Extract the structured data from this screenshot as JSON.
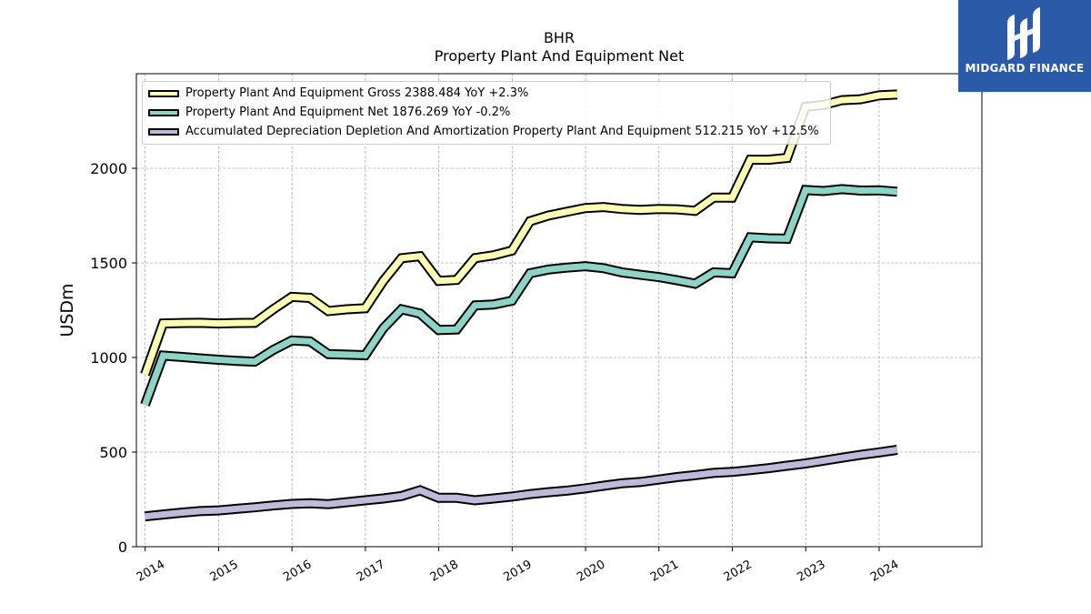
{
  "header": {
    "title_line1": "BHR",
    "title_line2": "Property Plant And Equipment Net"
  },
  "logo": {
    "text": "MIDGARD FINANCE",
    "icon": "midgard-logo-icon",
    "color": "#2a5aa8"
  },
  "chart_data": {
    "type": "line",
    "title": "BHR\nProperty Plant And Equipment Net",
    "ylabel": "USDm",
    "xlabel": "",
    "xlim": [
      2013.88,
      2025.4
    ],
    "ylim": [
      0,
      2500
    ],
    "yticks": [
      0,
      500,
      1000,
      1500,
      2000
    ],
    "xticks": [
      "2014",
      "2015",
      "2016",
      "2017",
      "2018",
      "2019",
      "2020",
      "2021",
      "2022",
      "2023",
      "2024"
    ],
    "grid": true,
    "legend_position": "top-left",
    "x": [
      "2013-12-31",
      "2014-03-31",
      "2014-06-30",
      "2014-09-30",
      "2014-12-31",
      "2015-03-31",
      "2015-06-30",
      "2015-09-30",
      "2015-12-31",
      "2016-03-31",
      "2016-06-30",
      "2016-09-30",
      "2016-12-31",
      "2017-03-31",
      "2017-06-30",
      "2017-09-30",
      "2017-12-31",
      "2018-03-31",
      "2018-06-30",
      "2018-09-30",
      "2018-12-31",
      "2019-03-31",
      "2019-06-30",
      "2019-09-30",
      "2019-12-31",
      "2020-03-31",
      "2020-06-30",
      "2020-09-30",
      "2020-12-31",
      "2021-03-31",
      "2021-06-30",
      "2021-09-30",
      "2021-12-31",
      "2022-03-31",
      "2022-06-30",
      "2022-09-30",
      "2022-12-31",
      "2023-03-31",
      "2023-06-30",
      "2023-09-30",
      "2023-12-31",
      "2024-03-31"
    ],
    "series": [
      {
        "name": "Property Plant And Equipment Gross",
        "legend": "Property Plant And Equipment Gross  2388.484 YoY +2.3%",
        "color": "#ffffb3",
        "values": [
          910,
          1180,
          1182,
          1183,
          1180,
          1182,
          1183,
          1255,
          1320,
          1315,
          1245,
          1255,
          1260,
          1405,
          1525,
          1535,
          1405,
          1410,
          1525,
          1540,
          1565,
          1720,
          1750,
          1770,
          1790,
          1795,
          1785,
          1780,
          1785,
          1783,
          1775,
          1845,
          1845,
          2045,
          2045,
          2055,
          2325,
          2335,
          2360,
          2365,
          2385,
          2390
        ]
      },
      {
        "name": "Property Plant And Equipment Net",
        "legend": "Property Plant And Equipment Net  1876.269 YoY -0.2%",
        "color": "#8dd3c7",
        "values": [
          750,
          1010,
          1003,
          995,
          988,
          982,
          978,
          1040,
          1090,
          1085,
          1018,
          1015,
          1012,
          1155,
          1255,
          1232,
          1145,
          1148,
          1275,
          1280,
          1300,
          1445,
          1465,
          1475,
          1482,
          1472,
          1450,
          1437,
          1425,
          1408,
          1390,
          1450,
          1445,
          1635,
          1630,
          1628,
          1885,
          1880,
          1890,
          1882,
          1883,
          1876
        ]
      },
      {
        "name": "Accumulated Depreciation Depletion And Amortization Property Plant And Equipment",
        "legend": "Accumulated Depreciation Depletion And Amortization Property Plant And Equipment  512.215 YoY +12.5%",
        "color": "#bebada",
        "values": [
          160,
          170,
          180,
          188,
          192,
          200,
          208,
          218,
          226,
          230,
          225,
          235,
          245,
          255,
          268,
          298,
          258,
          258,
          245,
          255,
          265,
          278,
          288,
          296,
          308,
          322,
          335,
          342,
          355,
          368,
          378,
          390,
          395,
          405,
          415,
          428,
          440,
          455,
          470,
          485,
          498,
          512
        ]
      }
    ]
  }
}
